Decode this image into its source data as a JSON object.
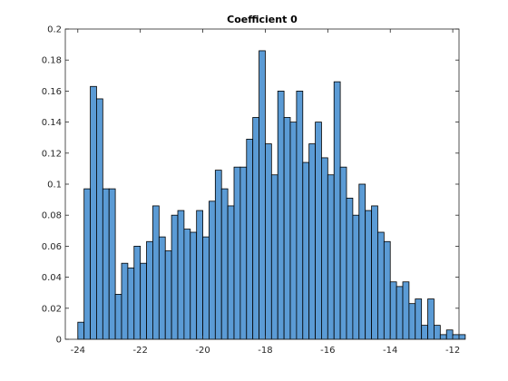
{
  "chart_data": {
    "type": "bar",
    "title": "Coefficient 0",
    "xlabel": "",
    "ylabel": "",
    "xlim": [
      -24.4,
      -11.8
    ],
    "ylim": [
      0,
      0.2
    ],
    "grid": false,
    "legend": "none",
    "bar_color": "#5b9bd5",
    "bin_width": 0.2,
    "bin_start": -24.0,
    "xticks": [
      -24,
      -22,
      -20,
      -18,
      -16,
      -14,
      -12
    ],
    "xtick_labels": [
      "-24",
      "-22",
      "-20",
      "-18",
      "-16",
      "-14",
      "-12"
    ],
    "yticks": [
      0,
      0.02,
      0.04,
      0.06,
      0.08,
      0.1,
      0.12,
      0.14,
      0.16,
      0.18,
      0.2
    ],
    "ytick_labels": [
      "0",
      "0.02",
      "0.04",
      "0.06",
      "0.08",
      "0.1",
      "0.12",
      "0.14",
      "0.16",
      "0.18",
      "0.2"
    ],
    "values": [
      0.011,
      0.097,
      0.163,
      0.155,
      0.097,
      0.097,
      0.029,
      0.049,
      0.046,
      0.06,
      0.049,
      0.063,
      0.086,
      0.066,
      0.057,
      0.08,
      0.083,
      0.071,
      0.069,
      0.083,
      0.066,
      0.089,
      0.109,
      0.097,
      0.086,
      0.111,
      0.111,
      0.129,
      0.143,
      0.186,
      0.126,
      0.106,
      0.16,
      0.143,
      0.14,
      0.16,
      0.114,
      0.126,
      0.14,
      0.117,
      0.106,
      0.166,
      0.111,
      0.091,
      0.08,
      0.1,
      0.083,
      0.086,
      0.069,
      0.063,
      0.037,
      0.034,
      0.037,
      0.023,
      0.026,
      0.009,
      0.026,
      0.009,
      0.003,
      0.006,
      0.003,
      0.003
    ]
  }
}
